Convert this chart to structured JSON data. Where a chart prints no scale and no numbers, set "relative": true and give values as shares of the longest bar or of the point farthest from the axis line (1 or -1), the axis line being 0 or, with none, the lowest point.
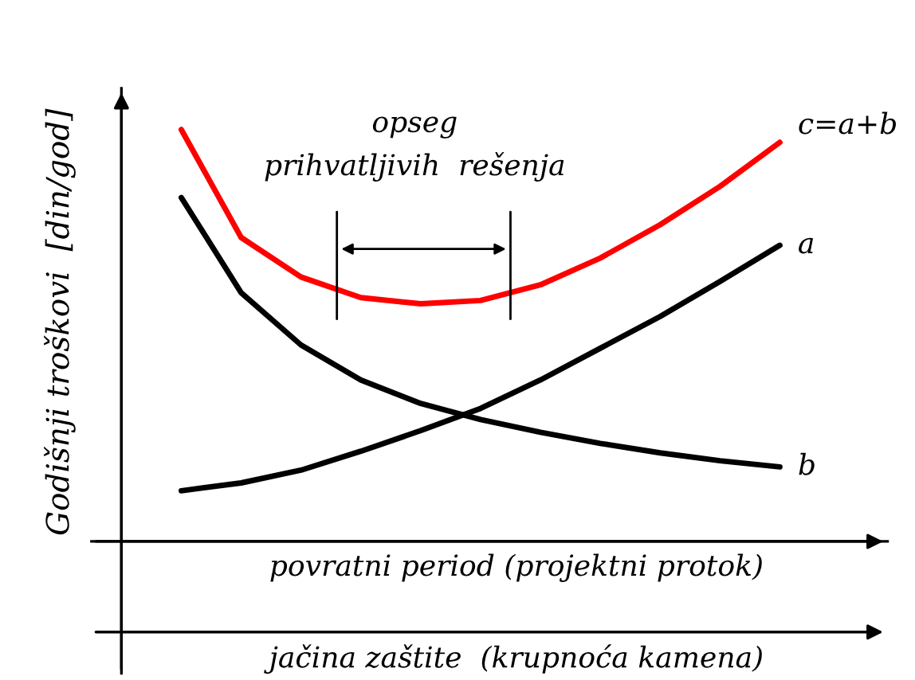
{
  "chart_data": {
    "type": "line",
    "relative": true,
    "ylabel": "Godišnji troškovi  [din/god]",
    "xlabel": "povratni period (projektni protok)",
    "categories": [
      null,
      null,
      null,
      null,
      null,
      null,
      null,
      null,
      null,
      null,
      null
    ],
    "series": [
      {
        "name": "c=a+b",
        "color": "#ff0000",
        "values": [
          1.0,
          0.738,
          0.642,
          0.592,
          0.577,
          0.585,
          0.623,
          0.688,
          0.769,
          0.862,
          0.969
        ]
      },
      {
        "name": "a",
        "color": "#000000",
        "values": [
          0.123,
          0.142,
          0.173,
          0.219,
          0.269,
          0.323,
          0.392,
          0.469,
          0.546,
          0.631,
          0.719
        ]
      },
      {
        "name": "b",
        "color": "#000000",
        "values": [
          0.835,
          0.604,
          0.477,
          0.392,
          0.335,
          0.296,
          0.265,
          0.238,
          0.215,
          0.196,
          0.181
        ]
      }
    ],
    "annotations": [
      "opseg\nprihvatljivih  rešenja",
      "jačina zaštite  (krupnoća kamena)"
    ],
    "legend": false,
    "marker": "none",
    "line_style": "solid"
  }
}
